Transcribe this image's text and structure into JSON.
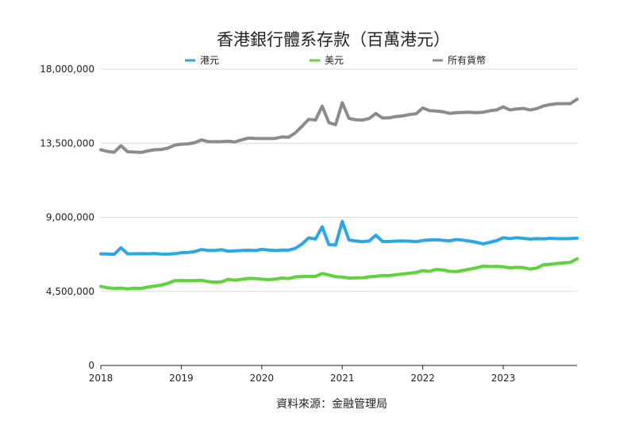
{
  "chart_data": {
    "type": "line",
    "title": "香港銀行體系存款（百萬港元）",
    "source": "資料來源：金融管理局",
    "ylim": [
      0,
      18000000
    ],
    "yticks": [
      {
        "value": 0,
        "label": "0"
      },
      {
        "value": 4500000,
        "label": "4,500,000"
      },
      {
        "value": 9000000,
        "label": "9,000,000"
      },
      {
        "value": 13500000,
        "label": "13,500,000"
      },
      {
        "value": 18000000,
        "label": "18,000,000"
      }
    ],
    "xlim": [
      2018.0,
      2023.917
    ],
    "xticks": [
      {
        "value": 2018,
        "label": "2018"
      },
      {
        "value": 2019,
        "label": "2019"
      },
      {
        "value": 2020,
        "label": "2020"
      },
      {
        "value": 2021,
        "label": "2021"
      },
      {
        "value": 2022,
        "label": "2022"
      },
      {
        "value": 2023,
        "label": "2023"
      }
    ],
    "grid": true,
    "legend_position": "top",
    "x": [
      2018.0,
      2018.083,
      2018.167,
      2018.25,
      2018.333,
      2018.417,
      2018.5,
      2018.583,
      2018.667,
      2018.75,
      2018.833,
      2018.917,
      2019.0,
      2019.083,
      2019.167,
      2019.25,
      2019.333,
      2019.417,
      2019.5,
      2019.583,
      2019.667,
      2019.75,
      2019.833,
      2019.917,
      2020.0,
      2020.083,
      2020.167,
      2020.25,
      2020.333,
      2020.417,
      2020.5,
      2020.583,
      2020.667,
      2020.75,
      2020.833,
      2020.917,
      2021.0,
      2021.083,
      2021.167,
      2021.25,
      2021.333,
      2021.417,
      2021.5,
      2021.583,
      2021.667,
      2021.75,
      2021.833,
      2021.917,
      2022.0,
      2022.083,
      2022.167,
      2022.25,
      2022.333,
      2022.417,
      2022.5,
      2022.583,
      2022.667,
      2022.75,
      2022.833,
      2022.917,
      2023.0,
      2023.083,
      2023.167,
      2023.25,
      2023.333,
      2023.417,
      2023.5,
      2023.583,
      2023.667,
      2023.75,
      2023.833,
      2023.917
    ],
    "series": [
      {
        "name": "港元",
        "color": "#29a7e8",
        "values": [
          6780000,
          6770000,
          6750000,
          7150000,
          6780000,
          6780000,
          6790000,
          6780000,
          6800000,
          6770000,
          6760000,
          6790000,
          6850000,
          6860000,
          6920000,
          7040000,
          6990000,
          6990000,
          7030000,
          6940000,
          6960000,
          6990000,
          7000000,
          6980000,
          7050000,
          7010000,
          6980000,
          7010000,
          7000000,
          7120000,
          7380000,
          7750000,
          7680000,
          8420000,
          7340000,
          7310000,
          8750000,
          7620000,
          7560000,
          7520000,
          7560000,
          7910000,
          7530000,
          7530000,
          7550000,
          7560000,
          7550000,
          7520000,
          7590000,
          7620000,
          7640000,
          7600000,
          7570000,
          7650000,
          7610000,
          7550000,
          7480000,
          7390000,
          7480000,
          7580000,
          7760000,
          7700000,
          7760000,
          7720000,
          7680000,
          7700000,
          7690000,
          7720000,
          7700000,
          7700000,
          7710000,
          7730000
        ]
      },
      {
        "name": "美元",
        "color": "#5fd33a",
        "values": [
          4800000,
          4720000,
          4680000,
          4700000,
          4650000,
          4690000,
          4680000,
          4760000,
          4820000,
          4880000,
          4990000,
          5150000,
          5160000,
          5150000,
          5150000,
          5180000,
          5090000,
          5060000,
          5080000,
          5230000,
          5180000,
          5230000,
          5290000,
          5280000,
          5240000,
          5210000,
          5250000,
          5310000,
          5280000,
          5380000,
          5400000,
          5420000,
          5410000,
          5590000,
          5490000,
          5390000,
          5370000,
          5310000,
          5320000,
          5330000,
          5380000,
          5420000,
          5460000,
          5460000,
          5510000,
          5560000,
          5600000,
          5650000,
          5760000,
          5720000,
          5830000,
          5800000,
          5720000,
          5700000,
          5770000,
          5850000,
          5930000,
          6030000,
          6010000,
          6020000,
          5990000,
          5930000,
          5960000,
          5940000,
          5860000,
          5920000,
          6120000,
          6150000,
          6190000,
          6230000,
          6260000,
          6480000
        ]
      },
      {
        "name": "所有貨幣",
        "color": "#8c8c8c",
        "values": [
          13100000,
          13000000,
          12950000,
          13350000,
          12980000,
          12960000,
          12940000,
          13030000,
          13100000,
          13120000,
          13200000,
          13380000,
          13440000,
          13460000,
          13530000,
          13700000,
          13600000,
          13590000,
          13600000,
          13620000,
          13580000,
          13700000,
          13810000,
          13790000,
          13780000,
          13780000,
          13790000,
          13880000,
          13860000,
          14130000,
          14530000,
          14950000,
          14900000,
          15750000,
          14750000,
          14620000,
          15960000,
          15010000,
          14920000,
          14900000,
          15000000,
          15300000,
          15030000,
          15040000,
          15120000,
          15160000,
          15240000,
          15290000,
          15640000,
          15480000,
          15450000,
          15410000,
          15310000,
          15350000,
          15370000,
          15380000,
          15350000,
          15380000,
          15470000,
          15520000,
          15710000,
          15520000,
          15580000,
          15610000,
          15520000,
          15600000,
          15760000,
          15850000,
          15900000,
          15900000,
          15900000,
          16170000
        ]
      }
    ]
  }
}
